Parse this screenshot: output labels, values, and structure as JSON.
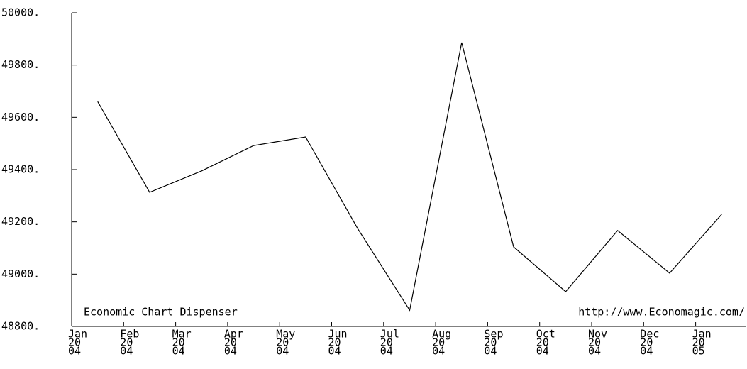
{
  "chart_data": {
    "type": "line",
    "categories": [
      [
        "Jan",
        "20",
        "04"
      ],
      [
        "Feb",
        "20",
        "04"
      ],
      [
        "Mar",
        "20",
        "04"
      ],
      [
        "Apr",
        "20",
        "04"
      ],
      [
        "May",
        "20",
        "04"
      ],
      [
        "Jun",
        "20",
        "04"
      ],
      [
        "Jul",
        "20",
        "04"
      ],
      [
        "Aug",
        "20",
        "04"
      ],
      [
        "Sep",
        "20",
        "04"
      ],
      [
        "Oct",
        "20",
        "04"
      ],
      [
        "Nov",
        "20",
        "04"
      ],
      [
        "Dec",
        "20",
        "04"
      ],
      [
        "Jan",
        "20",
        "05"
      ]
    ],
    "values": [
      49660,
      49313,
      49395,
      49492,
      49525,
      49175,
      48862,
      49886,
      49104,
      48933,
      49167,
      49004,
      49229
    ],
    "color": "#000000",
    "ylim": [
      48800,
      50000
    ],
    "yticks": [
      {
        "value": 48800,
        "label": "48800."
      },
      {
        "value": 49000,
        "label": "49000."
      },
      {
        "value": 49200,
        "label": "49200."
      },
      {
        "value": 49400,
        "label": "49400."
      },
      {
        "value": 49600,
        "label": "49600."
      },
      {
        "value": 49800,
        "label": "49800."
      },
      {
        "value": 50000,
        "label": "50000."
      }
    ],
    "annotations": [
      "Economic Chart Dispenser",
      "http://www.Economagic.com/"
    ]
  }
}
